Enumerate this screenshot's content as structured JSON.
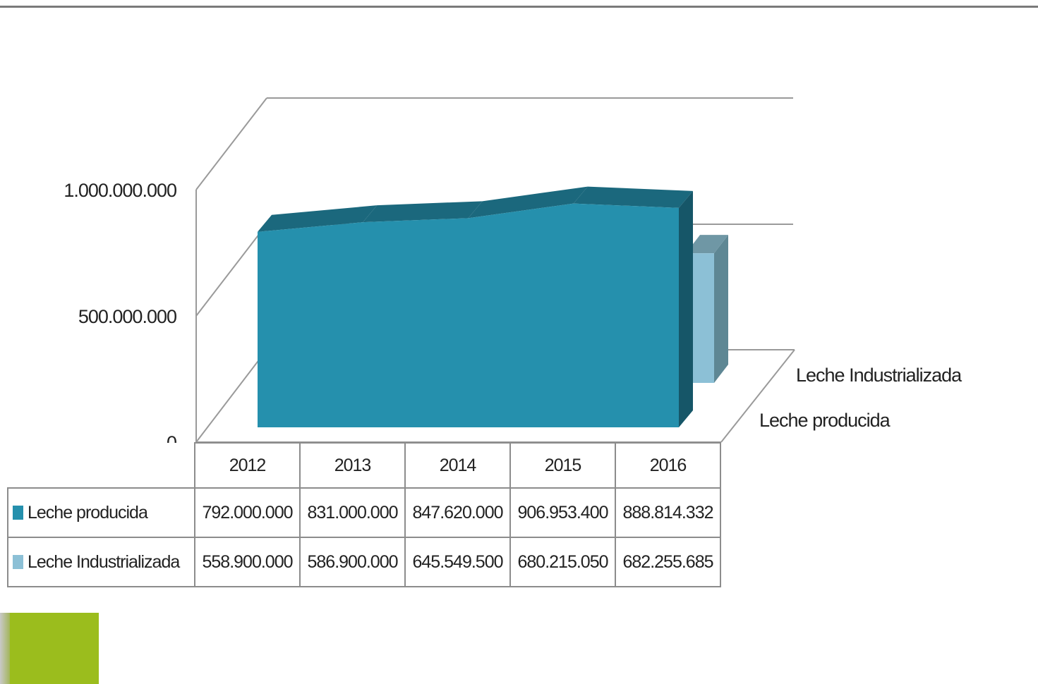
{
  "chart_data": {
    "type": "area",
    "categories": [
      "2012",
      "2013",
      "2014",
      "2015",
      "2016"
    ],
    "y_ticks": [
      "1.000.000.000",
      "500.000.000",
      "0"
    ],
    "ylim": [
      0,
      1000000000
    ],
    "series": [
      {
        "name": "Leche producida",
        "color": "#2590ad",
        "values": [
          792000000,
          831000000,
          847620000,
          906953400,
          888814332
        ],
        "display": [
          "792.000.000",
          "831.000.000",
          "847.620.000",
          "906.953.400",
          "888.814.332"
        ]
      },
      {
        "name": "Leche Industrializada",
        "color": "#8cc0d6",
        "values": [
          558900000,
          586900000,
          645549500,
          680215050,
          682255685
        ],
        "display": [
          "558.900.000",
          "586.900.000",
          "645.549.500",
          "680.215.050",
          "682.255.685"
        ]
      }
    ],
    "depth_labels": [
      "Leche Industrializada",
      "Leche producida"
    ],
    "grid": true
  },
  "colors": {
    "logo": "#9bbd1d",
    "frame": "#a0a0a0"
  }
}
